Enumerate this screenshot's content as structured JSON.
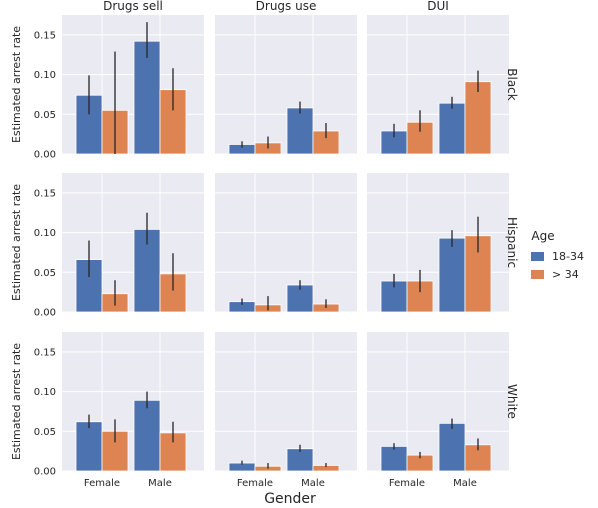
{
  "chart_data": {
    "type": "bar",
    "col_titles": [
      "Drugs sell",
      "Drugs use",
      "DUI"
    ],
    "row_labels": [
      "Black",
      "Hispanic",
      "White"
    ],
    "categories": [
      "Female",
      "Male"
    ],
    "xlabel": "Gender",
    "ylabel": "Estimated arrest rate",
    "ylim": [
      0,
      0.175
    ],
    "yticks": [
      0.0,
      0.05,
      0.1,
      0.15
    ],
    "ytick_labels": [
      "0.00",
      "0.05",
      "0.10",
      "0.15"
    ],
    "grid": true,
    "legend": {
      "title": "Age",
      "position": "right",
      "entries": [
        {
          "name": "18-34",
          "color": "#4c72b0"
        },
        {
          "name": "> 34",
          "color": "#dd8452"
        }
      ]
    },
    "panels": [
      {
        "row": "Black",
        "col": "Drugs sell",
        "series": [
          {
            "name": "18-34",
            "values": [
              0.074,
              0.142
            ],
            "ci": [
              [
                0.05,
                0.099
              ],
              [
                0.121,
                0.166
              ]
            ]
          },
          {
            "name": "> 34",
            "values": [
              0.055,
              0.081
            ],
            "ci": [
              [
                0.0,
                0.129
              ],
              [
                0.055,
                0.108
              ]
            ]
          }
        ]
      },
      {
        "row": "Black",
        "col": "Drugs use",
        "series": [
          {
            "name": "18-34",
            "values": [
              0.012,
              0.058
            ],
            "ci": [
              [
                0.008,
                0.016
              ],
              [
                0.051,
                0.066
              ]
            ]
          },
          {
            "name": "> 34",
            "values": [
              0.014,
              0.029
            ],
            "ci": [
              [
                0.007,
                0.022
              ],
              [
                0.02,
                0.039
              ]
            ]
          }
        ]
      },
      {
        "row": "Black",
        "col": "DUI",
        "series": [
          {
            "name": "18-34",
            "values": [
              0.029,
              0.064
            ],
            "ci": [
              [
                0.021,
                0.038
              ],
              [
                0.057,
                0.072
              ]
            ]
          },
          {
            "name": "> 34",
            "values": [
              0.04,
              0.091
            ],
            "ci": [
              [
                0.028,
                0.055
              ],
              [
                0.078,
                0.105
              ]
            ]
          }
        ]
      },
      {
        "row": "Hispanic",
        "col": "Drugs sell",
        "series": [
          {
            "name": "18-34",
            "values": [
              0.066,
              0.104
            ],
            "ci": [
              [
                0.044,
                0.09
              ],
              [
                0.085,
                0.125
              ]
            ]
          },
          {
            "name": "> 34",
            "values": [
              0.023,
              0.048
            ],
            "ci": [
              [
                0.008,
                0.04
              ],
              [
                0.027,
                0.074
              ]
            ]
          }
        ]
      },
      {
        "row": "Hispanic",
        "col": "Drugs use",
        "series": [
          {
            "name": "18-34",
            "values": [
              0.013,
              0.034
            ],
            "ci": [
              [
                0.009,
                0.017
              ],
              [
                0.028,
                0.04
              ]
            ]
          },
          {
            "name": "> 34",
            "values": [
              0.009,
              0.01
            ],
            "ci": [
              [
                0.002,
                0.02
              ],
              [
                0.005,
                0.016
              ]
            ]
          }
        ]
      },
      {
        "row": "Hispanic",
        "col": "DUI",
        "series": [
          {
            "name": "18-34",
            "values": [
              0.039,
              0.093
            ],
            "ci": [
              [
                0.031,
                0.048
              ],
              [
                0.082,
                0.103
              ]
            ]
          },
          {
            "name": "> 34",
            "values": [
              0.039,
              0.096
            ],
            "ci": [
              [
                0.025,
                0.053
              ],
              [
                0.075,
                0.12
              ]
            ]
          }
        ]
      },
      {
        "row": "White",
        "col": "Drugs sell",
        "series": [
          {
            "name": "18-34",
            "values": [
              0.062,
              0.089
            ],
            "ci": [
              [
                0.054,
                0.071
              ],
              [
                0.079,
                0.1
              ]
            ]
          },
          {
            "name": "> 34",
            "values": [
              0.05,
              0.048
            ],
            "ci": [
              [
                0.036,
                0.065
              ],
              [
                0.036,
                0.062
              ]
            ]
          }
        ]
      },
      {
        "row": "White",
        "col": "Drugs use",
        "series": [
          {
            "name": "18-34",
            "values": [
              0.01,
              0.028
            ],
            "ci": [
              [
                0.008,
                0.013
              ],
              [
                0.024,
                0.033
              ]
            ]
          },
          {
            "name": "> 34",
            "values": [
              0.006,
              0.007
            ],
            "ci": [
              [
                0.003,
                0.01
              ],
              [
                0.005,
                0.01
              ]
            ]
          }
        ]
      },
      {
        "row": "White",
        "col": "DUI",
        "series": [
          {
            "name": "18-34",
            "values": [
              0.031,
              0.06
            ],
            "ci": [
              [
                0.027,
                0.035
              ],
              [
                0.053,
                0.066
              ]
            ]
          },
          {
            "name": "> 34",
            "values": [
              0.02,
              0.033
            ],
            "ci": [
              [
                0.016,
                0.024
              ],
              [
                0.026,
                0.041
              ]
            ]
          }
        ]
      }
    ]
  }
}
